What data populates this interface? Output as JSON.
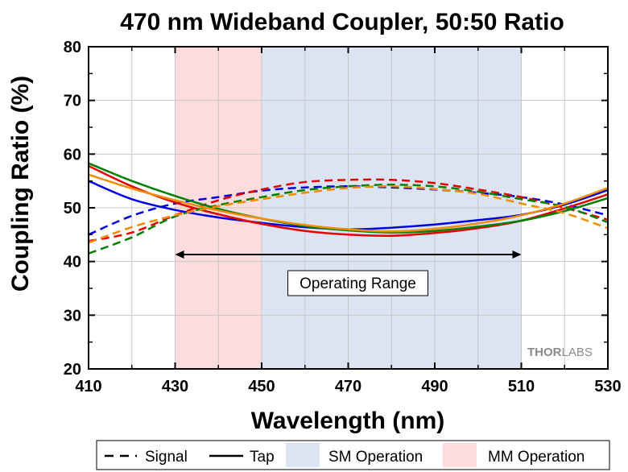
{
  "chart_data": {
    "type": "line",
    "title": "470 nm Wideband Coupler, 50:50 Ratio",
    "xlabel": "Wavelength (nm)",
    "ylabel": "Coupling Ratio (%)",
    "xlim": [
      410,
      530
    ],
    "ylim": [
      20,
      80
    ],
    "x_ticks": [
      "410",
      "430",
      "450",
      "470",
      "490",
      "510",
      "530"
    ],
    "y_ticks": [
      "20",
      "30",
      "40",
      "50",
      "60",
      "70",
      "80"
    ],
    "grid": true,
    "shaded_regions": [
      {
        "name": "MM Operation",
        "from": 430,
        "to": 450,
        "color": "#fcdcdc"
      },
      {
        "name": "SM Operation",
        "from": 450,
        "to": 510,
        "color": "#dce4f4"
      }
    ],
    "annotation": {
      "text": "Operating Range",
      "from": 430,
      "to": 510,
      "y": 41.3
    },
    "legend": {
      "position": "bottom",
      "entries": [
        "Signal",
        "Tap",
        "SM Operation",
        "MM Operation"
      ]
    },
    "watermark": {
      "part1": "THOR",
      "part2": "LABS"
    },
    "x": [
      410,
      420,
      430,
      440,
      450,
      460,
      470,
      480,
      490,
      500,
      510,
      520,
      530
    ],
    "series": [
      {
        "color": "#0000e6",
        "style": "dashed",
        "values": [
          45.0,
          48.5,
          50.8,
          52.0,
          53.2,
          53.8,
          54.0,
          53.8,
          53.4,
          52.8,
          52.0,
          50.6,
          48.6
        ]
      },
      {
        "color": "#0000e6",
        "style": "solid",
        "values": [
          55.0,
          51.6,
          49.6,
          48.2,
          47.2,
          46.4,
          46.0,
          46.3,
          46.9,
          47.7,
          48.7,
          50.6,
          53.3
        ]
      },
      {
        "color": "#e60000",
        "style": "dashed",
        "values": [
          43.8,
          45.4,
          48.6,
          51.4,
          53.4,
          54.8,
          55.2,
          55.2,
          54.6,
          53.4,
          52.0,
          50.0,
          47.8
        ]
      },
      {
        "color": "#e60000",
        "style": "solid",
        "values": [
          57.8,
          54.0,
          51.0,
          48.8,
          47.0,
          45.7,
          45.0,
          44.8,
          45.3,
          46.2,
          47.6,
          49.9,
          52.5
        ]
      },
      {
        "color": "#008000",
        "style": "dashed",
        "values": [
          41.5,
          44.5,
          48.4,
          50.5,
          52.0,
          53.3,
          54.0,
          54.3,
          54.0,
          53.0,
          51.6,
          50.2,
          47.3
        ]
      },
      {
        "color": "#008000",
        "style": "solid",
        "values": [
          58.3,
          55.0,
          52.2,
          49.8,
          48.0,
          46.6,
          45.8,
          45.4,
          45.7,
          46.5,
          47.6,
          49.4,
          51.8
        ]
      },
      {
        "color": "#f28c00",
        "style": "dashed",
        "values": [
          43.5,
          46.4,
          48.6,
          50.3,
          51.6,
          52.8,
          53.7,
          54.0,
          53.5,
          52.6,
          50.8,
          49.0,
          46.2
        ]
      },
      {
        "color": "#f28c00",
        "style": "solid",
        "values": [
          56.2,
          53.6,
          51.4,
          49.5,
          48.0,
          46.8,
          46.0,
          45.6,
          46.1,
          47.1,
          48.6,
          50.8,
          53.7
        ]
      }
    ]
  }
}
